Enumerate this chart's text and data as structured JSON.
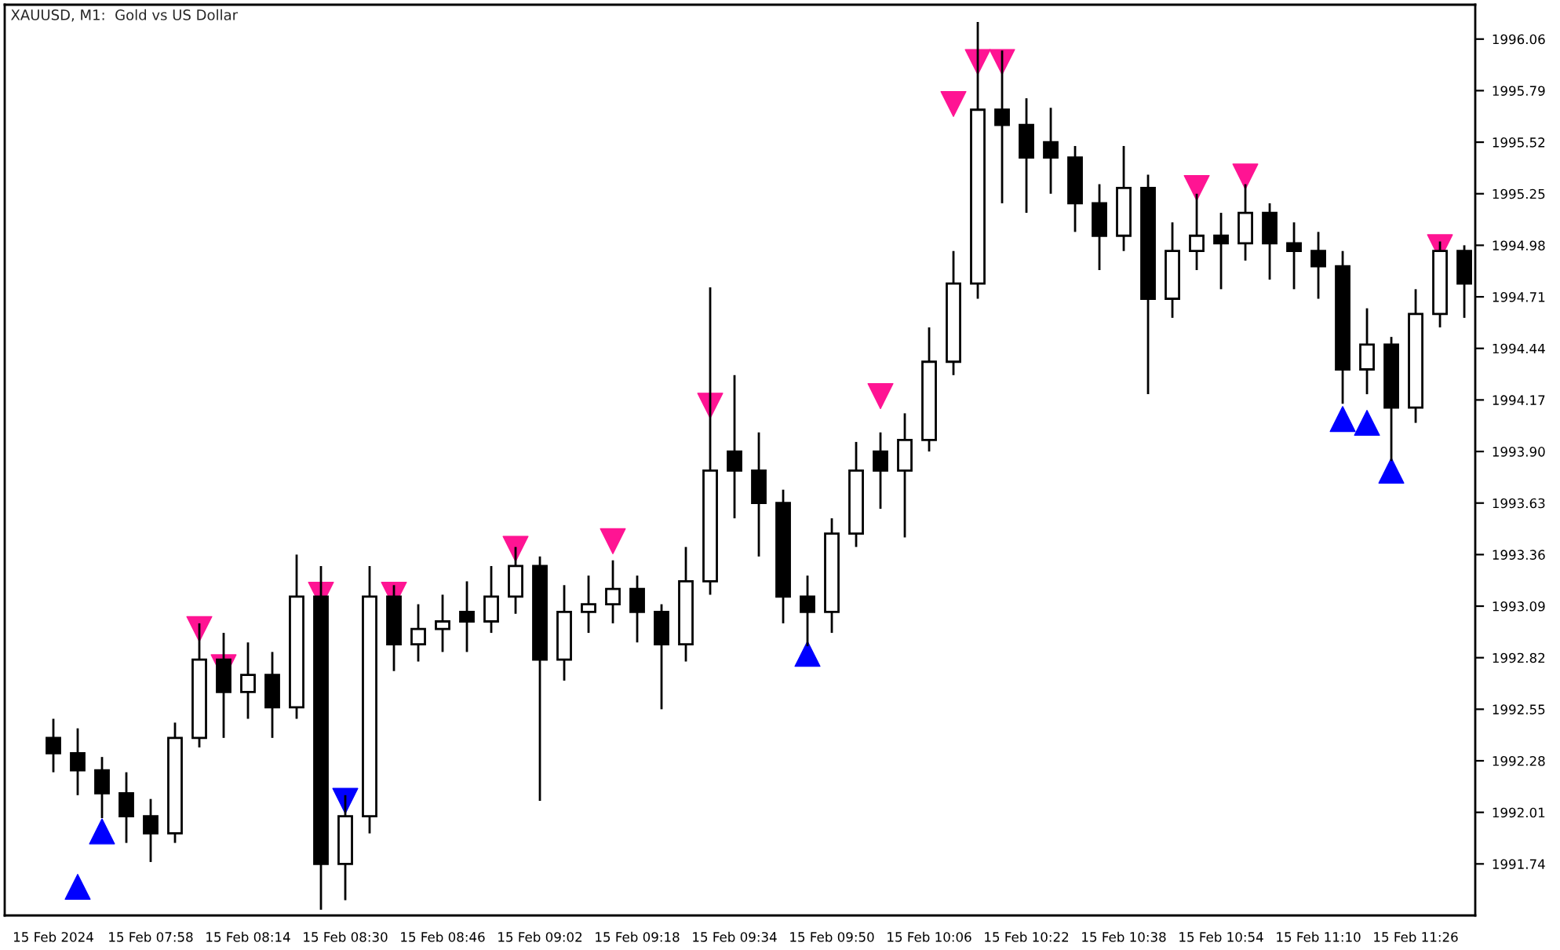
{
  "chart_data": {
    "type": "candlestick",
    "title": "XAUUSD, M1:  Gold vs US Dollar",
    "categories": [
      "15 Feb 2024",
      null,
      null,
      null,
      "15 Feb 07:58",
      null,
      null,
      null,
      "15 Feb 08:14",
      null,
      null,
      null,
      "15 Feb 08:30",
      null,
      null,
      null,
      "15 Feb 08:46",
      null,
      null,
      null,
      "15 Feb 09:02",
      null,
      null,
      null,
      "15 Feb 09:18",
      null,
      null,
      null,
      "15 Feb 09:34",
      null,
      null,
      null,
      "15 Feb 09:50",
      null,
      null,
      null,
      "15 Feb 10:06",
      null,
      null,
      null,
      "15 Feb 10:22",
      null,
      null,
      null,
      "15 Feb 10:38",
      null,
      null,
      null,
      "15 Feb 10:54",
      null,
      null,
      null,
      "15 Feb 11:10",
      null,
      null,
      null,
      "15 Feb 11:26",
      null,
      null
    ],
    "ohlc": [
      [
        1992.4,
        1992.5,
        1992.22,
        1992.32
      ],
      [
        1992.32,
        1992.45,
        1992.1,
        1992.23
      ],
      [
        1992.23,
        1992.3,
        1991.98,
        1992.11
      ],
      [
        1992.11,
        1992.22,
        1991.85,
        1991.99
      ],
      [
        1991.99,
        1992.08,
        1991.75,
        1991.9
      ],
      [
        1991.9,
        1992.48,
        1991.85,
        1992.4
      ],
      [
        1992.4,
        1993.0,
        1992.35,
        1992.81
      ],
      [
        1992.81,
        1992.95,
        1992.4,
        1992.64
      ],
      [
        1992.64,
        1992.9,
        1992.5,
        1992.73
      ],
      [
        1992.73,
        1992.85,
        1992.4,
        1992.56
      ],
      [
        1992.56,
        1993.36,
        1992.5,
        1993.14
      ],
      [
        1993.14,
        1993.3,
        1991.5,
        1991.74
      ],
      [
        1991.74,
        1992.1,
        1991.55,
        1991.99
      ],
      [
        1991.99,
        1993.3,
        1991.9,
        1993.14
      ],
      [
        1993.14,
        1993.2,
        1992.75,
        1992.89
      ],
      [
        1992.89,
        1993.1,
        1992.8,
        1992.97
      ],
      [
        1992.97,
        1993.15,
        1992.85,
        1993.01
      ],
      [
        1993.06,
        1993.22,
        1992.85,
        1993.01
      ],
      [
        1993.01,
        1993.3,
        1992.95,
        1993.14
      ],
      [
        1993.14,
        1993.4,
        1993.05,
        1993.3
      ],
      [
        1993.3,
        1993.35,
        1992.07,
        1992.81
      ],
      [
        1992.81,
        1993.2,
        1992.7,
        1993.06
      ],
      [
        1993.06,
        1993.25,
        1992.95,
        1993.1
      ],
      [
        1993.1,
        1993.33,
        1993.0,
        1993.18
      ],
      [
        1993.18,
        1993.25,
        1992.9,
        1993.06
      ],
      [
        1993.06,
        1993.1,
        1992.55,
        1992.89
      ],
      [
        1992.89,
        1993.4,
        1992.8,
        1993.22
      ],
      [
        1993.22,
        1994.76,
        1993.15,
        1993.8
      ],
      [
        1993.9,
        1994.3,
        1993.55,
        1993.8
      ],
      [
        1993.8,
        1994.0,
        1993.35,
        1993.63
      ],
      [
        1993.63,
        1993.7,
        1993.0,
        1993.14
      ],
      [
        1993.14,
        1993.25,
        1992.88,
        1993.06
      ],
      [
        1993.06,
        1993.55,
        1992.95,
        1993.47
      ],
      [
        1993.47,
        1993.95,
        1993.4,
        1993.8
      ],
      [
        1993.9,
        1994.0,
        1993.6,
        1993.8
      ],
      [
        1993.8,
        1994.1,
        1993.45,
        1993.96
      ],
      [
        1993.96,
        1994.55,
        1993.9,
        1994.37
      ],
      [
        1994.37,
        1994.95,
        1994.3,
        1994.78
      ],
      [
        1994.78,
        1996.15,
        1994.7,
        1995.69
      ],
      [
        1995.69,
        1996.0,
        1995.2,
        1995.61
      ],
      [
        1995.61,
        1995.75,
        1995.15,
        1995.44
      ],
      [
        1995.52,
        1995.7,
        1995.25,
        1995.44
      ],
      [
        1995.44,
        1995.5,
        1995.05,
        1995.2
      ],
      [
        1995.2,
        1995.3,
        1994.85,
        1995.03
      ],
      [
        1995.03,
        1995.5,
        1994.95,
        1995.28
      ],
      [
        1995.28,
        1995.35,
        1994.2,
        1994.7
      ],
      [
        1994.7,
        1995.1,
        1994.6,
        1994.95
      ],
      [
        1994.95,
        1995.25,
        1994.85,
        1995.03
      ],
      [
        1995.03,
        1995.15,
        1994.75,
        1994.99
      ],
      [
        1994.99,
        1995.3,
        1994.9,
        1995.15
      ],
      [
        1995.15,
        1995.2,
        1994.8,
        1994.99
      ],
      [
        1994.99,
        1995.1,
        1994.75,
        1994.95
      ],
      [
        1994.95,
        1995.05,
        1994.7,
        1994.87
      ],
      [
        1994.87,
        1994.95,
        1994.15,
        1994.33
      ],
      [
        1994.33,
        1994.65,
        1994.2,
        1994.46
      ],
      [
        1994.46,
        1994.5,
        1993.85,
        1994.13
      ],
      [
        1994.13,
        1994.75,
        1994.05,
        1994.62
      ],
      [
        1994.62,
        1995.0,
        1994.55,
        1994.95
      ],
      [
        1994.95,
        1994.98,
        1994.6,
        1994.78
      ]
    ],
    "series": [
      {
        "type": "scatter",
        "marker": "triangle",
        "color": "#ff1493",
        "values": [
          null,
          null,
          null,
          null,
          null,
          null,
          1992.97,
          1992.77,
          null,
          null,
          null,
          1993.15,
          null,
          null,
          1993.15,
          null,
          null,
          null,
          null,
          1993.39,
          null,
          null,
          null,
          1993.43,
          null,
          null,
          null,
          1994.14,
          null,
          null,
          null,
          null,
          null,
          null,
          1994.19,
          null,
          null,
          1995.72,
          1995.94,
          1995.94,
          null,
          null,
          null,
          null,
          null,
          null,
          null,
          1995.28,
          null,
          1995.34,
          null,
          null,
          null,
          null,
          null,
          null,
          null,
          1994.97,
          null
        ]
      },
      {
        "type": "scatter",
        "marker": "triangle",
        "color": "#0000ff",
        "values": [
          null,
          1991.62,
          1991.91,
          null,
          null,
          null,
          null,
          null,
          null,
          null,
          null,
          null,
          1992.07,
          null,
          null,
          null,
          null,
          null,
          null,
          null,
          null,
          null,
          null,
          null,
          null,
          null,
          null,
          null,
          null,
          null,
          null,
          1992.84,
          null,
          null,
          null,
          null,
          null,
          null,
          null,
          null,
          null,
          null,
          null,
          null,
          null,
          null,
          null,
          null,
          null,
          null,
          null,
          null,
          null,
          1994.07,
          1994.05,
          1993.8,
          null,
          null,
          null
        ]
      }
    ],
    "ylim": [
      1991.47,
      1996.24
    ],
    "yticks": [
      1991.74,
      1992.01,
      1992.28,
      1992.55,
      1992.82,
      1993.09,
      1993.36,
      1993.63,
      {
        "value": 1993.9,
        "label": "1993.90"
      },
      1994.17,
      1994.44,
      1994.71,
      1994.98,
      1995.25,
      1995.52,
      1995.79,
      1996.06
    ],
    "grid": false,
    "legend": false
  }
}
